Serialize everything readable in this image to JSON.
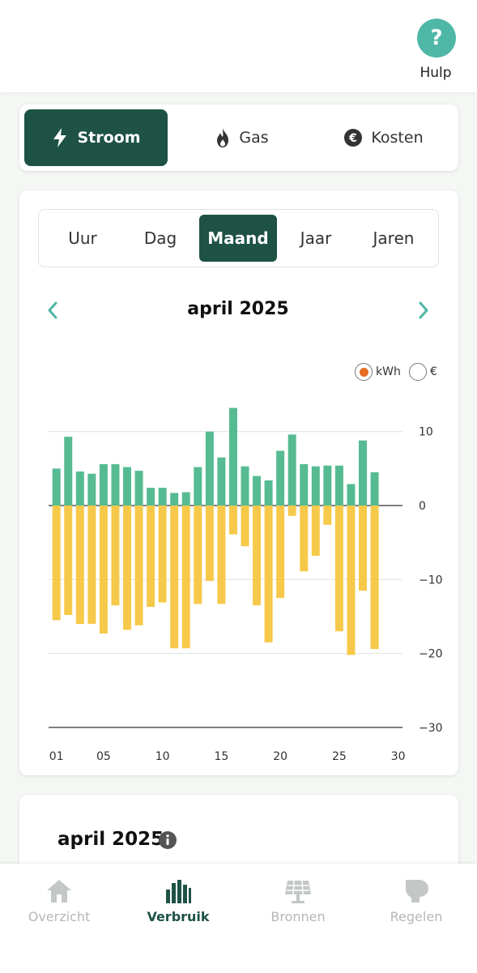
{
  "header": {
    "help_label": "Hulp",
    "help_symbol": "?"
  },
  "energy_tabs": [
    {
      "label": "Stroom",
      "icon": "lightning-icon",
      "active": true
    },
    {
      "label": "Gas",
      "icon": "flame-icon",
      "active": false
    },
    {
      "label": "Kosten",
      "icon": "euro-icon",
      "active": false
    }
  ],
  "period_tabs": [
    {
      "label": "Uur",
      "active": false
    },
    {
      "label": "Dag",
      "active": false
    },
    {
      "label": "Maand",
      "active": true
    },
    {
      "label": "Jaar",
      "active": false
    },
    {
      "label": "Jaren",
      "active": false
    }
  ],
  "period_title": "april 2025",
  "unit_options": [
    {
      "label": "kWh",
      "selected": true
    },
    {
      "label": "€",
      "selected": false
    }
  ],
  "colors": {
    "accent": "#1e5245",
    "usage": "#56bb92",
    "feedin": "#f7c94a",
    "help": "#4fb7a6",
    "arrow": "#4fb7a6"
  },
  "chart_data": {
    "type": "bar",
    "x": [
      1,
      2,
      3,
      4,
      5,
      6,
      7,
      8,
      9,
      10,
      11,
      12,
      13,
      14,
      15,
      16,
      17,
      18,
      19,
      20,
      21,
      22,
      23,
      24,
      25,
      26,
      27,
      28
    ],
    "series": [
      {
        "values": [
          5,
          9.3,
          4.6,
          4.3,
          5.6,
          5.6,
          5.2,
          4.7,
          2.4,
          2.4,
          1.7,
          1.8,
          5.2,
          10,
          6.5,
          13.2,
          5.3,
          4,
          3.4,
          7.4,
          9.6,
          5.6,
          5.3,
          5.4,
          5.4,
          2.9,
          8.8,
          4.5
        ]
      },
      {
        "values": [
          -15.5,
          -14.8,
          -16,
          -16,
          -17.3,
          -13.5,
          -16.8,
          -16.2,
          -13.7,
          -13.1,
          -19.3,
          -19.3,
          -13.3,
          -10.2,
          -13.3,
          -3.9,
          -5.5,
          -13.5,
          -18.5,
          -12.5,
          -1.4,
          -8.9,
          -6.8,
          -2.6,
          -17,
          -20.2,
          -11.5,
          -19.4
        ]
      }
    ],
    "x_tick_labels": [
      "01",
      "05",
      "10",
      "15",
      "20",
      "25",
      "30"
    ],
    "x_tick_values": [
      1,
      5,
      10,
      15,
      20,
      25,
      30
    ],
    "y_ticks": [
      10,
      0,
      -10,
      -20,
      -30
    ],
    "ylim": [
      -30,
      14
    ],
    "grid": true
  },
  "summary": {
    "title": "april 2025"
  },
  "bottom_nav": [
    {
      "label": "Overzicht",
      "icon": "home-icon",
      "active": false
    },
    {
      "label": "Verbruik",
      "icon": "bar-chart-icon",
      "active": true
    },
    {
      "label": "Bronnen",
      "icon": "solar-panel-icon",
      "active": false
    },
    {
      "label": "Regelen",
      "icon": "control-icon",
      "active": false
    }
  ]
}
